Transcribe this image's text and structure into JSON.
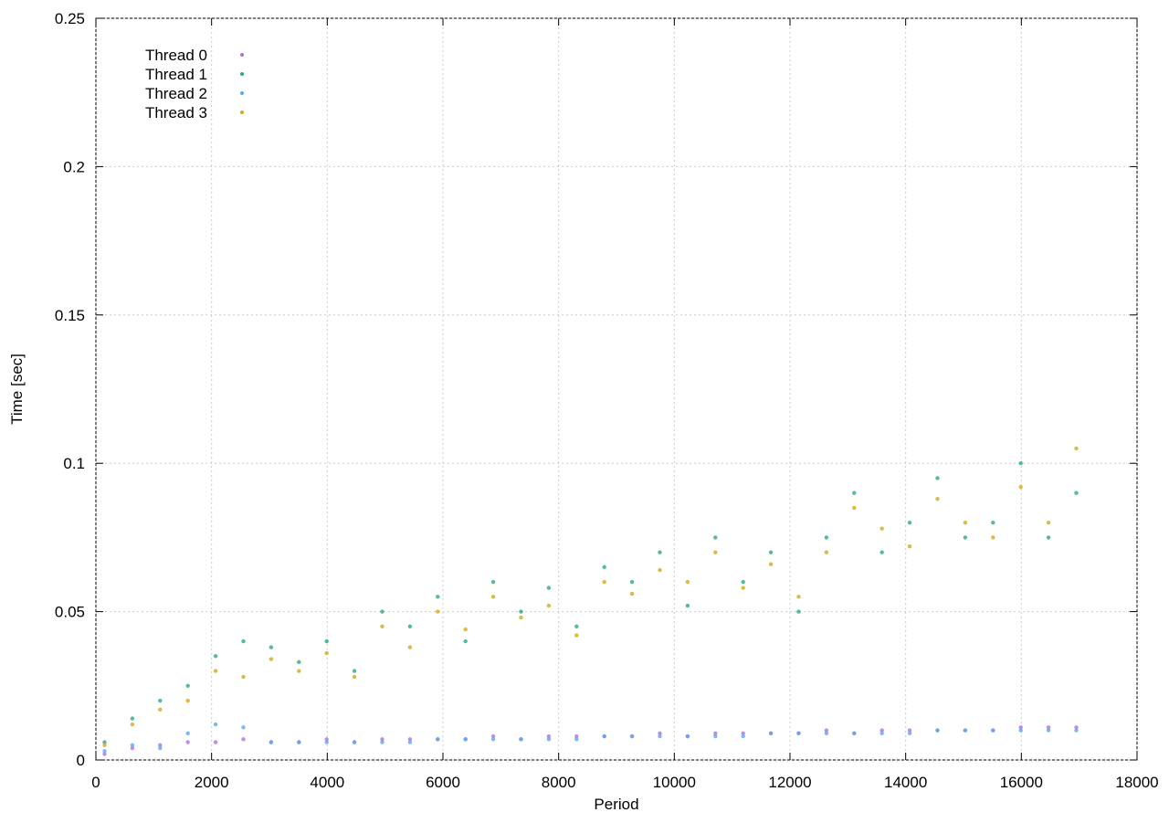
{
  "chart_data": {
    "type": "scatter",
    "x_label": "Period",
    "y_label": "Time [sec]",
    "xlim": [
      0,
      18000
    ],
    "xticks": [
      0,
      2000,
      4000,
      6000,
      8000,
      10000,
      12000,
      14000,
      16000,
      18000
    ],
    "ylim": [
      0,
      0.25
    ],
    "yticks": [
      0,
      0.05,
      0.1,
      0.15,
      0.2,
      0.25
    ],
    "grid": true,
    "legend": "top-left",
    "series": [
      {
        "name": "Thread 0",
        "color": "#b070e0",
        "x": [
          150,
          630,
          1110,
          1590,
          2070,
          2550,
          3030,
          3510,
          3990,
          4470,
          4950,
          5430,
          5910,
          6390,
          6870,
          7350,
          7830,
          8310,
          8790,
          9270,
          9750,
          10230,
          10710,
          11190,
          11670,
          12150,
          12630,
          13110,
          13590,
          14070,
          14550,
          15030,
          15510,
          15990,
          16470,
          16950
        ],
        "values": [
          0.002,
          0.004,
          0.005,
          0.006,
          0.006,
          0.007,
          0.006,
          0.006,
          0.007,
          0.006,
          0.007,
          0.007,
          0.007,
          0.007,
          0.008,
          0.007,
          0.008,
          0.008,
          0.008,
          0.008,
          0.009,
          0.008,
          0.009,
          0.009,
          0.009,
          0.009,
          0.01,
          0.009,
          0.01,
          0.01,
          0.01,
          0.01,
          0.01,
          0.011,
          0.011,
          0.011
        ]
      },
      {
        "name": "Thread 1",
        "color": "#2aa889",
        "x": [
          150,
          630,
          1110,
          1590,
          2070,
          2550,
          3030,
          3510,
          3990,
          4470,
          4950,
          5430,
          5910,
          6390,
          6870,
          7350,
          7830,
          8310,
          8790,
          9270,
          9750,
          10230,
          10710,
          11190,
          11670,
          12150,
          12630,
          13110,
          13590,
          14070,
          14550,
          15030,
          15510,
          15990,
          16470,
          16950
        ],
        "values": [
          0.006,
          0.014,
          0.02,
          0.025,
          0.035,
          0.04,
          0.038,
          0.033,
          0.04,
          0.03,
          0.05,
          0.045,
          0.055,
          0.04,
          0.06,
          0.05,
          0.058,
          0.045,
          0.065,
          0.06,
          0.07,
          0.052,
          0.075,
          0.06,
          0.07,
          0.05,
          0.075,
          0.09,
          0.07,
          0.08,
          0.095,
          0.075,
          0.08,
          0.1,
          0.075,
          0.09
        ]
      },
      {
        "name": "Thread 2",
        "color": "#5aa8f0",
        "x": [
          150,
          630,
          1110,
          1590,
          2070,
          2550,
          3030,
          3510,
          3990,
          4470,
          4950,
          5430,
          5910,
          6390,
          6870,
          7350,
          7830,
          8310,
          8790,
          9270,
          9750,
          10230,
          10710,
          11190,
          11670,
          12150,
          12630,
          13110,
          13590,
          14070,
          14550,
          15030,
          15510,
          15990,
          16470,
          16950
        ],
        "values": [
          0.003,
          0.005,
          0.004,
          0.009,
          0.012,
          0.011,
          0.006,
          0.006,
          0.006,
          0.006,
          0.006,
          0.006,
          0.007,
          0.007,
          0.007,
          0.007,
          0.007,
          0.007,
          0.008,
          0.008,
          0.008,
          0.008,
          0.008,
          0.008,
          0.009,
          0.009,
          0.009,
          0.009,
          0.009,
          0.009,
          0.01,
          0.01,
          0.01,
          0.01,
          0.01,
          0.01
        ]
      },
      {
        "name": "Thread 3",
        "color": "#d4a817",
        "x": [
          150,
          630,
          1110,
          1590,
          2070,
          2550,
          3030,
          3510,
          3990,
          4470,
          4950,
          5430,
          5910,
          6390,
          6870,
          7350,
          7830,
          8310,
          8790,
          9270,
          9750,
          10230,
          10710,
          11190,
          11670,
          12150,
          12630,
          13110,
          13590,
          14070,
          14550,
          15030,
          15510,
          15990,
          16470,
          16950
        ],
        "values": [
          0.005,
          0.012,
          0.017,
          0.02,
          0.03,
          0.028,
          0.034,
          0.03,
          0.036,
          0.028,
          0.045,
          0.038,
          0.05,
          0.044,
          0.055,
          0.048,
          0.052,
          0.042,
          0.06,
          0.056,
          0.064,
          0.06,
          0.07,
          0.058,
          0.066,
          0.055,
          0.07,
          0.085,
          0.078,
          0.072,
          0.088,
          0.08,
          0.075,
          0.092,
          0.08,
          0.105
        ]
      }
    ]
  }
}
